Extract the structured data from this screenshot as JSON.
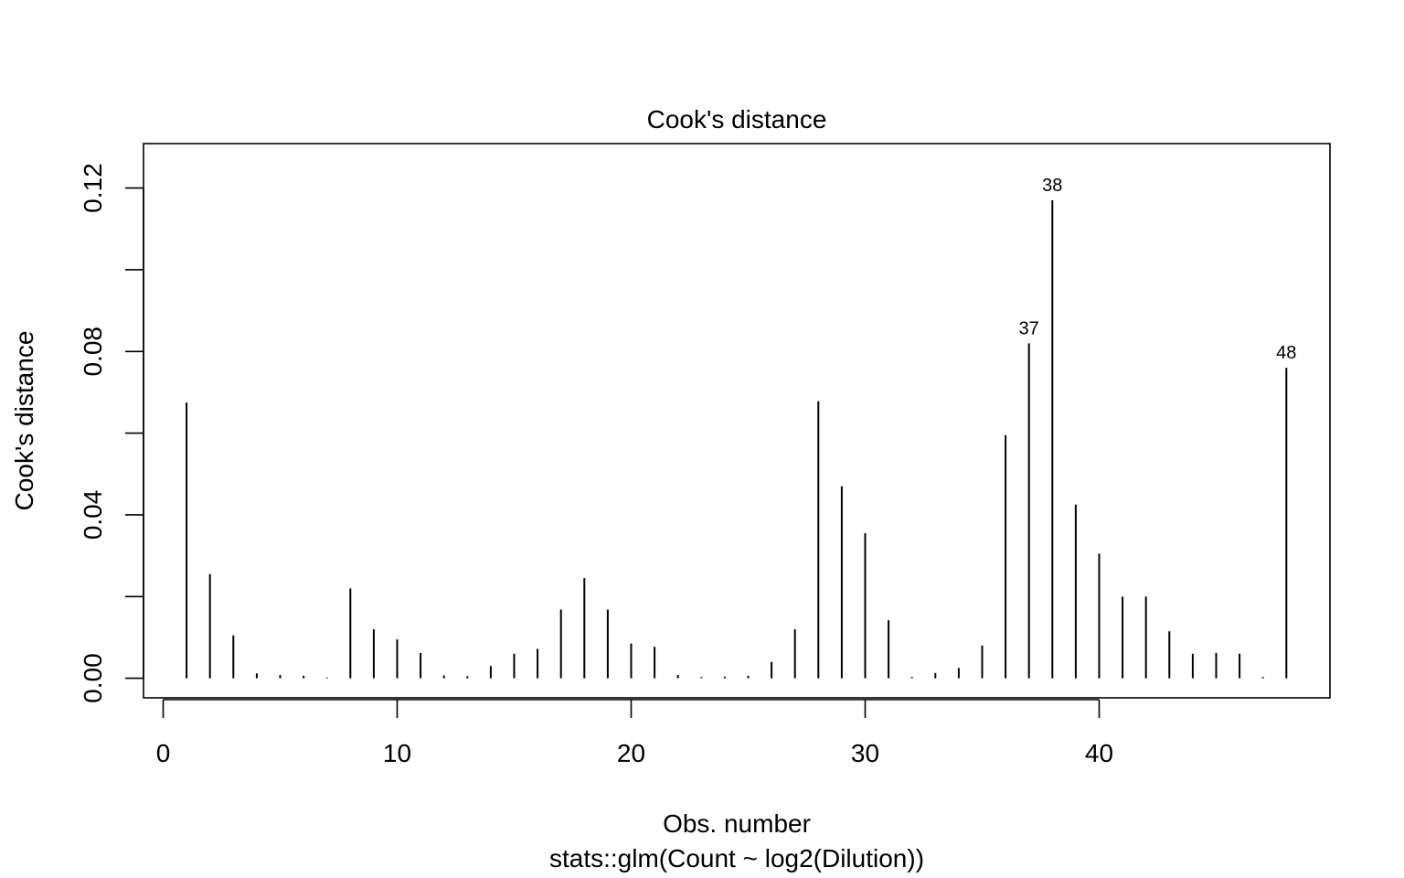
{
  "chart_data": {
    "type": "bar",
    "title": "Cook's distance",
    "xlabel": "Obs. number",
    "subtitle": "stats::glm(Count ~ log2(Dilution))",
    "ylabel": "Cook's distance",
    "xlim": [
      0,
      48
    ],
    "ylim": [
      0,
      0.13
    ],
    "x_ticks": [
      0,
      10,
      20,
      30,
      40
    ],
    "x_tick_labels": [
      "0",
      "10",
      "20",
      "30",
      "40"
    ],
    "y_ticks": [
      0.0,
      0.02,
      0.04,
      0.06,
      0.08,
      0.1,
      0.12
    ],
    "y_tick_labels": [
      "0.00",
      "",
      "0.04",
      "",
      "0.08",
      "",
      "0.12"
    ],
    "grid": false,
    "x": [
      1,
      2,
      3,
      4,
      5,
      6,
      7,
      8,
      9,
      10,
      11,
      12,
      13,
      14,
      15,
      16,
      17,
      18,
      19,
      20,
      21,
      22,
      23,
      24,
      25,
      26,
      27,
      28,
      29,
      30,
      31,
      32,
      33,
      34,
      35,
      36,
      37,
      38,
      39,
      40,
      41,
      42,
      43,
      44,
      45,
      46,
      47,
      48
    ],
    "values": [
      0.0675,
      0.0255,
      0.0105,
      0.0012,
      0.0008,
      0.0006,
      0.0002,
      0.022,
      0.012,
      0.0095,
      0.0062,
      0.0007,
      0.0005,
      0.003,
      0.006,
      0.0072,
      0.0168,
      0.0245,
      0.0168,
      0.0085,
      0.0077,
      0.0008,
      0.0003,
      0.0004,
      0.0006,
      0.004,
      0.012,
      0.0678,
      0.047,
      0.0355,
      0.0142,
      0.0003,
      0.0013,
      0.0025,
      0.008,
      0.0595,
      0.082,
      0.117,
      0.0425,
      0.0305,
      0.02,
      0.02,
      0.0115,
      0.006,
      0.0062,
      0.006,
      0.0003,
      0.076
    ],
    "annotations": [
      {
        "x": 37,
        "label": "37"
      },
      {
        "x": 38,
        "label": "38"
      },
      {
        "x": 48,
        "label": "48"
      }
    ]
  }
}
